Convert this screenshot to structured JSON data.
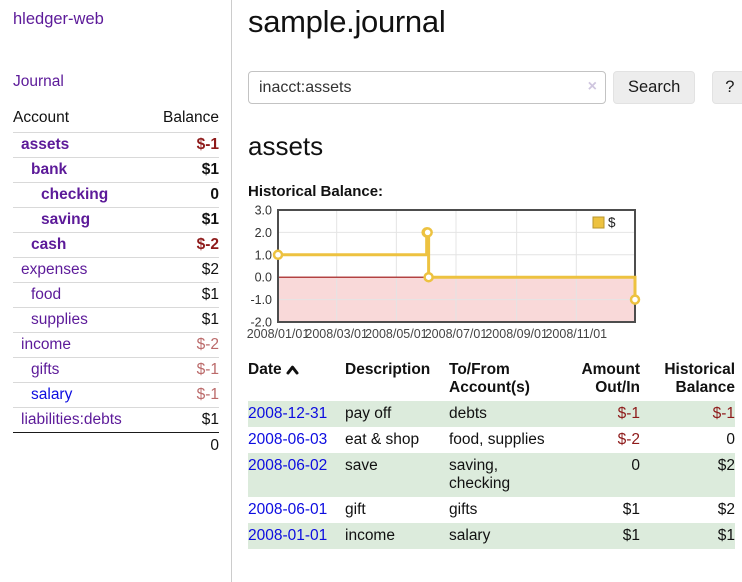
{
  "app": {
    "brand": "hledger-web"
  },
  "sidebar": {
    "nav": [
      {
        "label": "Journal"
      }
    ],
    "accounts_table": {
      "headers": {
        "account": "Account",
        "balance": "Balance"
      },
      "rows": [
        {
          "account": "assets",
          "indent": 1,
          "bold": true,
          "balance": "$-1",
          "balance_style": "neg-strong"
        },
        {
          "account": "bank",
          "indent": 2,
          "bold": true,
          "balance": "$1",
          "balance_style": "pos-strong"
        },
        {
          "account": "checking",
          "indent": 3,
          "bold": true,
          "balance": "0",
          "balance_style": "pos-strong"
        },
        {
          "account": "saving",
          "indent": 3,
          "bold": true,
          "balance": "$1",
          "balance_style": "pos-strong"
        },
        {
          "account": "cash",
          "indent": 2,
          "bold": true,
          "balance": "$-2",
          "balance_style": "neg-strong"
        },
        {
          "account": "expenses",
          "indent": 1,
          "bold": false,
          "balance": "$2",
          "balance_style": "pos"
        },
        {
          "account": "food",
          "indent": 2,
          "bold": false,
          "balance": "$1",
          "balance_style": "pos"
        },
        {
          "account": "supplies",
          "indent": 2,
          "bold": false,
          "balance": "$1",
          "balance_style": "pos"
        },
        {
          "account": "income",
          "indent": 1,
          "bold": false,
          "balance": "$-2",
          "balance_style": "neg-soft"
        },
        {
          "account": "gifts",
          "indent": 2,
          "bold": false,
          "balance": "$-1",
          "balance_style": "neg-soft"
        },
        {
          "account": "salary",
          "indent": 2,
          "bold": false,
          "balance": "$-1",
          "balance_style": "neg-soft",
          "link_color": "blue"
        },
        {
          "account": "liabilities:debts",
          "indent": 1,
          "bold": false,
          "balance": "$1",
          "balance_style": "pos"
        }
      ],
      "total": "0"
    }
  },
  "header": {
    "title": "sample.journal"
  },
  "search": {
    "query": "inacct:assets",
    "clear_icon": "×",
    "button_label": "Search",
    "help_label": "?"
  },
  "account_page": {
    "heading": "assets",
    "chart_label": "Historical Balance:"
  },
  "chart_data": {
    "type": "line",
    "steps": true,
    "title": "Historical Balance:",
    "legend": "$",
    "legend_position": "top-right",
    "series_color": "#EDC240",
    "zero_line_color": "#9c0f0f",
    "negative_fill": "#f9d9d9",
    "grid_color": "#e4e4e4",
    "border_color": "#4d4d4d",
    "ylim": [
      -2,
      3
    ],
    "x_range_days": 365,
    "y_ticks": [
      {
        "label": "3.0",
        "value": 3
      },
      {
        "label": "2.0",
        "value": 2
      },
      {
        "label": "1.0",
        "value": 1
      },
      {
        "label": "0.0",
        "value": 0
      },
      {
        "label": "-1.0",
        "value": -1
      },
      {
        "label": "-2.0",
        "value": -2
      }
    ],
    "x_ticks": [
      {
        "label": "2008/01/01",
        "day": 0
      },
      {
        "label": "2008/03/01",
        "day": 60
      },
      {
        "label": "2008/05/01",
        "day": 121
      },
      {
        "label": "2008/07/01",
        "day": 182
      },
      {
        "label": "2008/09/01",
        "day": 244
      },
      {
        "label": "2008/11/01",
        "day": 305
      }
    ],
    "points": [
      {
        "date": "2008-01-01",
        "day": 0,
        "value": 1
      },
      {
        "date": "2008-06-01",
        "day": 152,
        "value": 2
      },
      {
        "date": "2008-06-02",
        "day": 153,
        "value": 2
      },
      {
        "date": "2008-06-03",
        "day": 154,
        "value": 0
      },
      {
        "date": "2008-12-31",
        "day": 365,
        "value": -1
      }
    ]
  },
  "register_table": {
    "headers": {
      "date": "Date",
      "description": "Description",
      "tofrom": "To/From Account(s)",
      "amount": "Amount Out/In",
      "balance": "Historical Balance"
    },
    "rows": [
      {
        "date": "2008-12-31",
        "description": "pay off",
        "accounts": "debts",
        "amount": "$-1",
        "amount_neg": true,
        "balance": "$-1",
        "balance_neg": true,
        "shaded": true
      },
      {
        "date": "2008-06-03",
        "description": "eat & shop",
        "accounts": "food, supplies",
        "amount": "$-2",
        "amount_neg": true,
        "balance": "0",
        "balance_neg": false,
        "shaded": false
      },
      {
        "date": "2008-06-02",
        "description": "save",
        "accounts": "saving, checking",
        "amount": "0",
        "amount_neg": false,
        "balance": "$2",
        "balance_neg": false,
        "shaded": true
      },
      {
        "date": "2008-06-01",
        "description": "gift",
        "accounts": "gifts",
        "amount": "$1",
        "amount_neg": false,
        "balance": "$2",
        "balance_neg": false,
        "shaded": false
      },
      {
        "date": "2008-01-01",
        "description": "income",
        "accounts": "salary",
        "amount": "$1",
        "amount_neg": false,
        "balance": "$1",
        "balance_neg": false,
        "shaded": true
      }
    ]
  }
}
